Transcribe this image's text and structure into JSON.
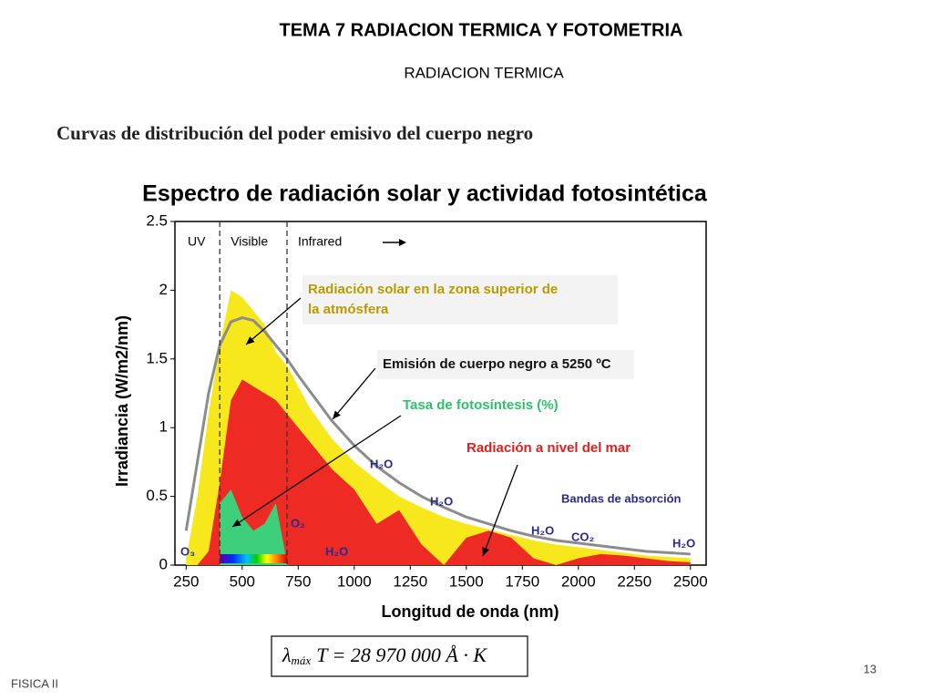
{
  "header": {
    "title": "TEMA 7 RADIACION TERMICA Y FOTOMETRIA",
    "subtitle": "RADIACION TERMICA"
  },
  "heading": "Curvas de distribución del poder emisivo del cuerpo negro",
  "chart_data": {
    "type": "area",
    "title": "Espectro de radiación solar y actividad fotosintética",
    "x_label": "Longitud de onda (nm)",
    "y_label": "Irradiancia (W/m2/nm)",
    "xlim": [
      200,
      2570
    ],
    "ylim": [
      0,
      2.5
    ],
    "xticks": [
      250,
      500,
      750,
      1000,
      1250,
      1500,
      1750,
      2000,
      2250,
      2500
    ],
    "yticks": [
      0,
      0.5,
      1,
      1.5,
      2,
      2.5
    ],
    "x": [
      250,
      300,
      350,
      400,
      450,
      500,
      550,
      600,
      650,
      700,
      750,
      800,
      900,
      1000,
      1100,
      1200,
      1300,
      1400,
      1500,
      1600,
      1700,
      1800,
      1900,
      2000,
      2100,
      2200,
      2300,
      2400,
      2500
    ],
    "series": [
      {
        "name": "Radiación solar en la zona superior de la atmósfera",
        "kind": "area",
        "color": "#f7e81e",
        "values": [
          0.05,
          0.5,
          1.1,
          1.6,
          2.0,
          1.95,
          1.85,
          1.75,
          1.55,
          1.45,
          1.3,
          1.15,
          0.92,
          0.75,
          0.62,
          0.5,
          0.42,
          0.35,
          0.3,
          0.26,
          0.22,
          0.18,
          0.15,
          0.13,
          0.11,
          0.09,
          0.07,
          0.06,
          0.05
        ]
      },
      {
        "name": "Radiación a nivel del mar",
        "kind": "area",
        "color": "#ee2a24",
        "values": [
          0,
          0,
          0.1,
          0.6,
          1.2,
          1.35,
          1.3,
          1.25,
          1.2,
          1.1,
          1.0,
          0.9,
          0.7,
          0.55,
          0.3,
          0.4,
          0.15,
          0,
          0.2,
          0.25,
          0.2,
          0.05,
          0,
          0.05,
          0.08,
          0.07,
          0.05,
          0.03,
          0.02
        ]
      },
      {
        "name": "Tasa de fotosíntesis (%)",
        "kind": "area",
        "color": "#3ecf7a",
        "values": [
          null,
          null,
          null,
          0.45,
          0.55,
          0.35,
          0.25,
          0.3,
          0.45,
          0.02,
          null,
          null,
          null,
          null,
          null,
          null,
          null,
          null,
          null,
          null,
          null,
          null,
          null,
          null,
          null,
          null,
          null,
          null,
          null
        ]
      },
      {
        "name": "Emisión de cuerpo negro a 5250 ºC",
        "kind": "line",
        "color": "#8c8c8c",
        "values": [
          0.25,
          0.75,
          1.25,
          1.6,
          1.77,
          1.8,
          1.78,
          1.7,
          1.6,
          1.5,
          1.38,
          1.27,
          1.05,
          0.87,
          0.72,
          0.6,
          0.5,
          0.42,
          0.35,
          0.3,
          0.25,
          0.21,
          0.18,
          0.16,
          0.14,
          0.12,
          0.1,
          0.09,
          0.08
        ]
      }
    ],
    "regions": [
      {
        "label": "UV",
        "end": 400
      },
      {
        "label": "Visible",
        "end": 700
      },
      {
        "label": "Infrared"
      }
    ],
    "absorption_title": "Bandas de absorción",
    "absorption_labels": [
      "O₃",
      "O₂",
      "H₂O",
      "H₂O",
      "H₂O",
      "H₂O",
      "CO₂",
      "H₂O"
    ]
  },
  "formula": {
    "symbol": "λ",
    "subscript": "máx",
    "rest": "T = 28 970 000 Å · K"
  },
  "footer": {
    "page": "13",
    "label": "FISICA II"
  }
}
